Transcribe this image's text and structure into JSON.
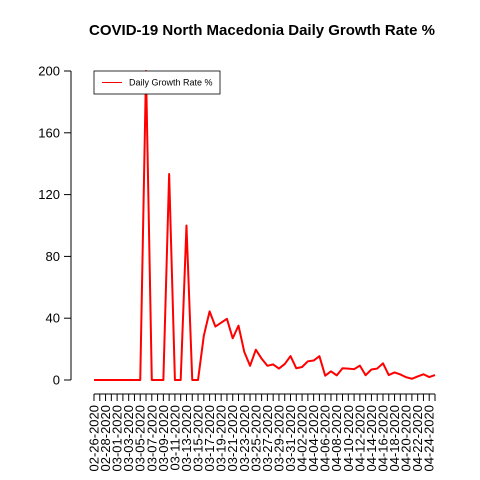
{
  "chart_data": {
    "type": "line",
    "title": "COVID-19 North Macedonia Daily Growth Rate %",
    "xlabel": "",
    "ylabel": "",
    "ylim": [
      0,
      200
    ],
    "yticks": [
      0,
      40,
      80,
      120,
      160,
      200
    ],
    "grid": false,
    "legend": {
      "placement": "top-left",
      "boxed": true
    },
    "x": [
      "02-26-2020",
      "02-27-2020",
      "02-28-2020",
      "02-29-2020",
      "03-01-2020",
      "03-02-2020",
      "03-03-2020",
      "03-04-2020",
      "03-05-2020",
      "03-06-2020",
      "03-07-2020",
      "03-08-2020",
      "03-09-2020",
      "03-10-2020",
      "03-11-2020",
      "03-12-2020",
      "03-13-2020",
      "03-14-2020",
      "03-15-2020",
      "03-16-2020",
      "03-17-2020",
      "03-18-2020",
      "03-19-2020",
      "03-20-2020",
      "03-21-2020",
      "03-22-2020",
      "03-23-2020",
      "03-24-2020",
      "03-25-2020",
      "03-26-2020",
      "03-27-2020",
      "03-28-2020",
      "03-29-2020",
      "03-30-2020",
      "03-31-2020",
      "04-01-2020",
      "04-02-2020",
      "04-03-2020",
      "04-04-2020",
      "04-05-2020",
      "04-06-2020",
      "04-07-2020",
      "04-08-2020",
      "04-09-2020",
      "04-10-2020",
      "04-11-2020",
      "04-12-2020",
      "04-13-2020",
      "04-14-2020",
      "04-15-2020",
      "04-16-2020",
      "04-17-2020",
      "04-18-2020",
      "04-19-2020",
      "04-20-2020",
      "04-21-2020",
      "04-22-2020",
      "04-23-2020",
      "04-24-2020",
      "04-25-2020"
    ],
    "xtick_labels": [
      "02-26-2020",
      "02-28-2020",
      "03-01-2020",
      "03-03-2020",
      "03-05-2020",
      "03-07-2020",
      "03-09-2020",
      "03-11-2020",
      "03-13-2020",
      "03-15-2020",
      "03-17-2020",
      "03-19-2020",
      "03-21-2020",
      "03-23-2020",
      "03-25-2020",
      "03-27-2020",
      "03-29-2020",
      "03-31-2020",
      "04-02-2020",
      "04-04-2020",
      "04-06-2020",
      "04-08-2020",
      "04-10-2020",
      "04-12-2020",
      "04-14-2020",
      "04-16-2020",
      "04-18-2020",
      "04-20-2020",
      "04-22-2020",
      "04-24-2020"
    ],
    "series": [
      {
        "name": "Daily Growth Rate %",
        "color": "#ff0000",
        "values": [
          0,
          0,
          0,
          0,
          0,
          0,
          0,
          0,
          0,
          200,
          0,
          0,
          0,
          133.3,
          0,
          0,
          100,
          0,
          0,
          28.6,
          44.4,
          34.6,
          37.1,
          39.6,
          27,
          35.2,
          18.2,
          9.2,
          19.6,
          13.8,
          9.2,
          10.1,
          7.4,
          10.3,
          15.5,
          7.6,
          8.4,
          12.1,
          12.6,
          15.4,
          2.8,
          5.6,
          3,
          7.6,
          7.4,
          7,
          9.3,
          3.1,
          6.8,
          7.4,
          10.8,
          3.2,
          4.9,
          3.6,
          1.8,
          0.8,
          2.3,
          3.7,
          1.9,
          3.2
        ]
      }
    ]
  }
}
